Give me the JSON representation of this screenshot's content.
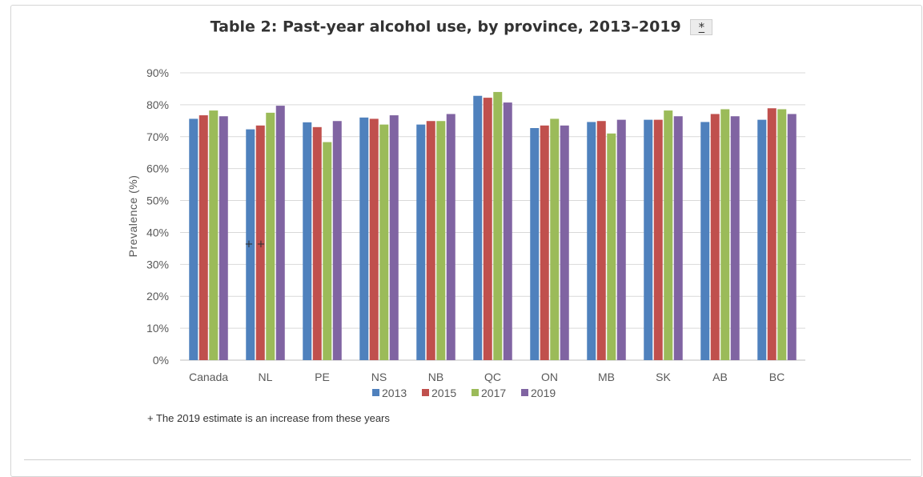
{
  "header": {
    "title": "Table 2: Past-year alcohol use, by province, 2013–2019",
    "footnote_link": "*"
  },
  "chart_data": {
    "type": "bar",
    "title": "Table 2: Past-year alcohol use, by province, 2013–2019",
    "xlabel": "",
    "ylabel": "Prevalence (%)",
    "ylim": [
      0,
      90
    ],
    "yticks": [
      "0%",
      "10%",
      "20%",
      "30%",
      "40%",
      "50%",
      "60%",
      "70%",
      "80%",
      "90%"
    ],
    "grid": true,
    "legend_position": "bottom",
    "categories": [
      "Canada",
      "NL",
      "PE",
      "NS",
      "NB",
      "QC",
      "ON",
      "MB",
      "SK",
      "AB",
      "BC"
    ],
    "series": [
      {
        "name": "2013",
        "color": "#4f81bd",
        "values": [
          75.6,
          72.3,
          74.5,
          76.0,
          73.8,
          82.8,
          72.7,
          74.6,
          75.3,
          74.6,
          75.3
        ]
      },
      {
        "name": "2015",
        "color": "#c0504d",
        "values": [
          76.7,
          73.5,
          73.0,
          75.6,
          74.9,
          82.2,
          73.5,
          74.9,
          75.3,
          77.1,
          78.9
        ]
      },
      {
        "name": "2017",
        "color": "#9bbb59",
        "values": [
          78.2,
          77.5,
          68.3,
          73.8,
          74.9,
          84.0,
          75.6,
          71.0,
          78.2,
          78.6,
          78.6
        ]
      },
      {
        "name": "2019",
        "color": "#8064a2",
        "values": [
          76.4,
          79.7,
          74.9,
          76.7,
          77.1,
          80.7,
          73.5,
          75.3,
          76.4,
          76.4,
          77.1
        ]
      }
    ],
    "annotations": [
      {
        "category": "NL",
        "text": "+ +"
      }
    ]
  },
  "note": "+ The 2019 estimate is an increase from these years"
}
